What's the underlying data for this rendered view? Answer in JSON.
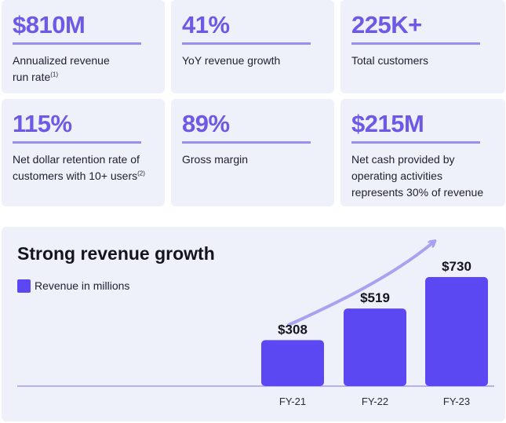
{
  "kpis": [
    {
      "value": "$810M",
      "label": "Annualized revenue run rate",
      "label_lines": [
        "Annualized revenue",
        "run rate"
      ],
      "footnote": "(1)"
    },
    {
      "value": "41%",
      "label": "YoY revenue growth",
      "label_lines": [
        "YoY revenue growth"
      ],
      "footnote": ""
    },
    {
      "value": "225K+",
      "label": "Total customers",
      "label_lines": [
        "Total customers"
      ],
      "footnote": ""
    },
    {
      "value": "115%",
      "label": "Net dollar retention rate of customers with 10+ users",
      "label_lines": [
        "Net dollar retention rate of",
        "customers with 10+ users"
      ],
      "footnote": "(2)"
    },
    {
      "value": "89%",
      "label": "Gross margin",
      "label_lines": [
        "Gross margin"
      ],
      "footnote": ""
    },
    {
      "value": "$215M",
      "label": "Net cash provided by operating activities represents 30% of revenue",
      "label_lines": [
        "Net cash provided by",
        "operating activities",
        "represents 30% of revenue"
      ],
      "footnote": ""
    }
  ],
  "chart_data": {
    "type": "bar",
    "title": "Strong revenue growth",
    "legend": [
      "Revenue in millions"
    ],
    "legend_placement": "top-left",
    "categories": [
      "FY-21",
      "FY-22",
      "FY-23"
    ],
    "values": [
      308,
      519,
      730
    ],
    "data_labels": [
      "$308",
      "$519",
      "$730"
    ],
    "ylim": [
      0,
      730
    ],
    "grid": false,
    "annotation": "upward growth arrow",
    "colors": {
      "bar": "#5b48f2",
      "arrow": "#a9a3ef",
      "axis": "#b7b2ef"
    }
  },
  "colors": {
    "accent": "#6a5ae6",
    "card_bg": "#eef0fa",
    "rule": "#9a8ff0"
  }
}
